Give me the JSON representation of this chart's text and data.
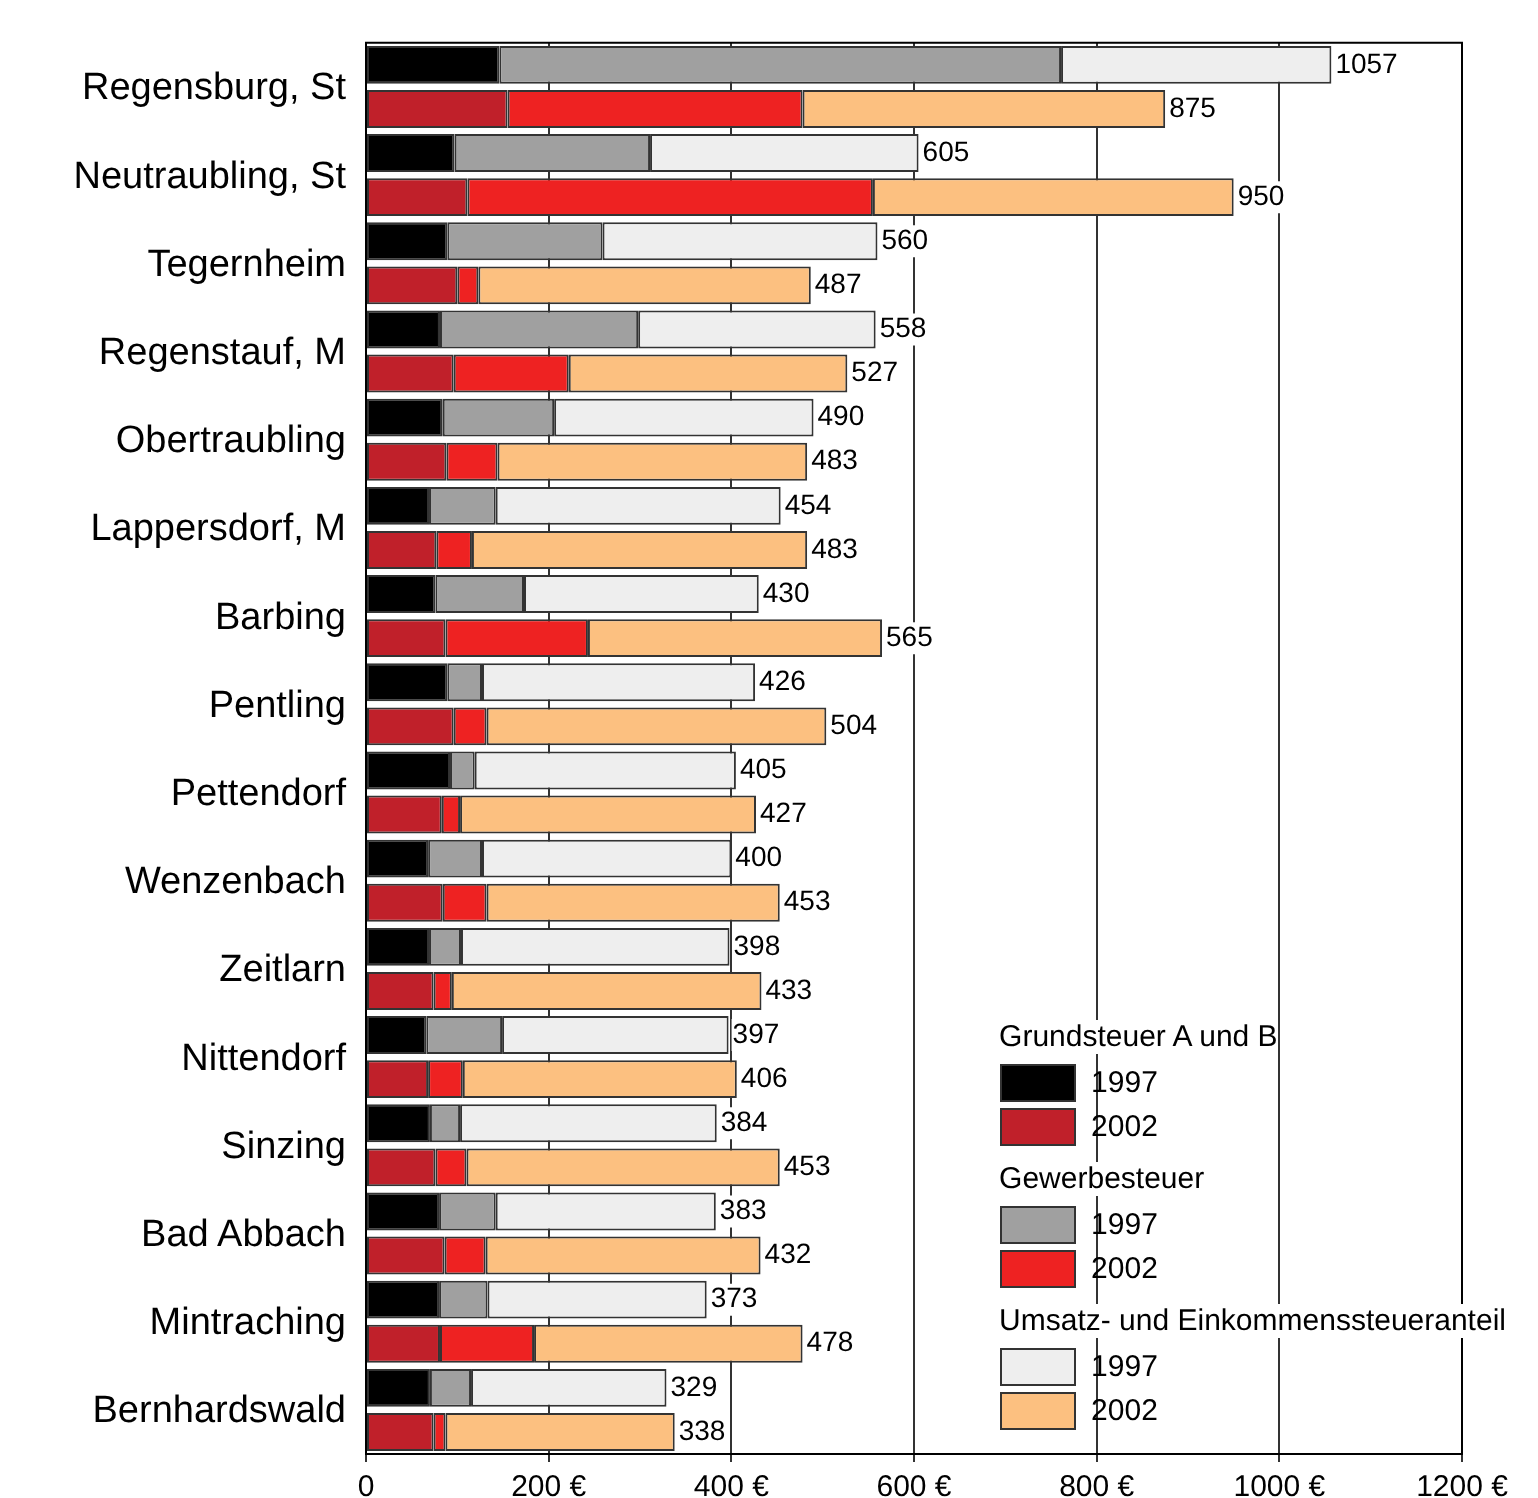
{
  "chart_data": {
    "type": "bar",
    "orientation": "horizontal",
    "stacked": true,
    "categories": [
      "Regensburg, St",
      null,
      "Neutraubling, St",
      null,
      "Tegernheim",
      null,
      "Regenstauf, M",
      null,
      "Obertraubling",
      null,
      "Lappersdorf, M",
      null,
      "Barbing",
      null,
      "Pentling",
      null,
      "Pettendorf",
      null,
      "Wenzenbach",
      null,
      "Zeitlarn",
      null,
      "Nittendorf",
      null,
      "Sinzing",
      null,
      "Bad Abbach",
      null,
      "Mintraching",
      null,
      "Bernhardswald",
      null
    ],
    "series": [
      {
        "name": "1997",
        "color": "#000000",
        "values": [
          146,
          null,
          97,
          null,
          89,
          null,
          81,
          null,
          84,
          null,
          69,
          null,
          76,
          null,
          89,
          null,
          92,
          null,
          68,
          null,
          69,
          null,
          66,
          null,
          70,
          null,
          80,
          null,
          80,
          null,
          70,
          null
        ]
      },
      {
        "name": "2002",
        "color": "#c0202a",
        "values": [
          null,
          155,
          null,
          111,
          null,
          100,
          null,
          96,
          null,
          88,
          null,
          77,
          null,
          87,
          null,
          96,
          null,
          83,
          null,
          84,
          null,
          74,
          null,
          68,
          null,
          76,
          null,
          86,
          null,
          81,
          null,
          74
        ]
      },
      {
        "name": "1997",
        "color": "#a0a0a0",
        "values": [
          615,
          null,
          214,
          null,
          170,
          null,
          217,
          null,
          122,
          null,
          73,
          null,
          97,
          null,
          38,
          null,
          27,
          null,
          59,
          null,
          35,
          null,
          83,
          null,
          33,
          null,
          62,
          null,
          53,
          null,
          45,
          null
        ]
      },
      {
        "name": "2002",
        "color": "#ee2222",
        "values": [
          null,
          323,
          null,
          444,
          null,
          23,
          null,
          126,
          null,
          56,
          null,
          39,
          null,
          156,
          null,
          36,
          null,
          20,
          null,
          48,
          null,
          20,
          null,
          38,
          null,
          34,
          null,
          45,
          null,
          103,
          null,
          13
        ]
      },
      {
        "name": "1997",
        "color": "#eeeeee",
        "values": [
          296,
          null,
          294,
          null,
          301,
          null,
          260,
          null,
          284,
          null,
          312,
          null,
          257,
          null,
          299,
          null,
          286,
          null,
          273,
          null,
          294,
          null,
          248,
          null,
          281,
          null,
          241,
          null,
          240,
          null,
          214,
          null
        ]
      },
      {
        "name": "2002",
        "color": "#fcc080",
        "values": [
          null,
          397,
          null,
          395,
          null,
          364,
          null,
          305,
          null,
          339,
          null,
          367,
          null,
          322,
          null,
          372,
          null,
          324,
          null,
          321,
          null,
          339,
          null,
          300,
          null,
          343,
          null,
          301,
          null,
          294,
          null,
          251
        ]
      }
    ],
    "totals": [
      "1057",
      "875",
      "605",
      "950",
      "560",
      "487",
      "558",
      "527",
      "490",
      "483",
      "454",
      "483",
      "430",
      "565",
      "426",
      "504",
      "405",
      "427",
      "400",
      "453",
      "398",
      "433",
      "397",
      "406",
      "384",
      "453",
      "383",
      "432",
      "373",
      "478",
      "329",
      "338"
    ],
    "annotations": [
      "Grundsteuer A und B",
      "Gewerbesteuer",
      "Umsatz- und Einkommenssteueranteil"
    ],
    "xlim": [
      0,
      1200
    ],
    "xticks": [
      {
        "value": 0,
        "label": "0"
      },
      {
        "value": 200,
        "label": "200 €"
      },
      {
        "value": 400,
        "label": "400 €"
      },
      {
        "value": 600,
        "label": "600 €"
      },
      {
        "value": 800,
        "label": "800 €"
      },
      {
        "value": 1000,
        "label": "1000 €"
      },
      {
        "value": 1200,
        "label": "1200 €"
      }
    ],
    "grid": "x",
    "legend": "bottom right"
  }
}
